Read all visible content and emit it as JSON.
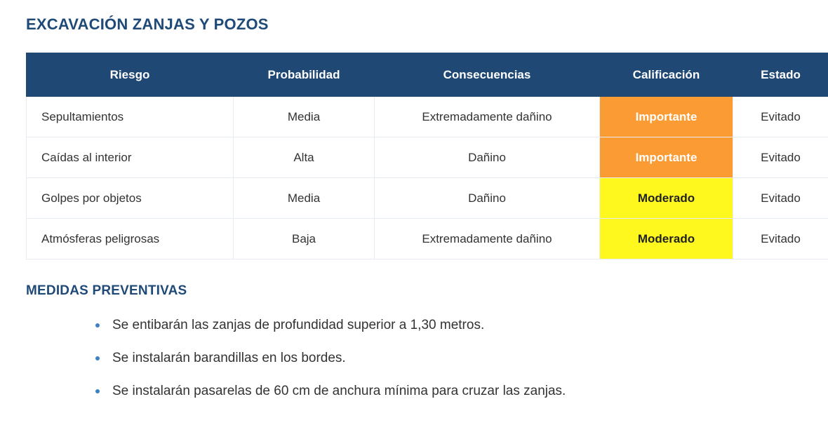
{
  "section": {
    "title": "EXCAVACIÓN ZANJAS Y POZOS"
  },
  "table": {
    "headers": [
      "Riesgo",
      "Probabilidad",
      "Consecuencias",
      "Calificación",
      "Estado"
    ],
    "rows": [
      {
        "riesgo": "Sepultamientos",
        "probabilidad": "Media",
        "consecuencias": "Extremadamente dañino",
        "calificacion": "Importante",
        "estado": "Evitado"
      },
      {
        "riesgo": "Caídas al interior",
        "probabilidad": "Alta",
        "consecuencias": "Dañino",
        "calificacion": "Importante",
        "estado": "Evitado"
      },
      {
        "riesgo": "Golpes por objetos",
        "probabilidad": "Media",
        "consecuencias": "Dañino",
        "calificacion": "Moderado",
        "estado": "Evitado"
      },
      {
        "riesgo": "Atmósferas peligrosas",
        "probabilidad": "Baja",
        "consecuencias": "Extremadamente dañino",
        "calificacion": "Moderado",
        "estado": "Evitado"
      }
    ]
  },
  "colors": {
    "header_bg": "#204875",
    "title": "#1f4a78",
    "importante": "#fb9b33",
    "moderado": "#fff81f",
    "bullet": "#3b82c4"
  },
  "medidas": {
    "title": "MEDIDAS PREVENTIVAS",
    "items": [
      "Se entibarán las zanjas de profundidad superior a 1,30 metros.",
      "Se instalarán barandillas en los bordes.",
      "Se instalarán pasarelas de 60 cm de anchura mínima para cruzar las zanjas."
    ]
  }
}
